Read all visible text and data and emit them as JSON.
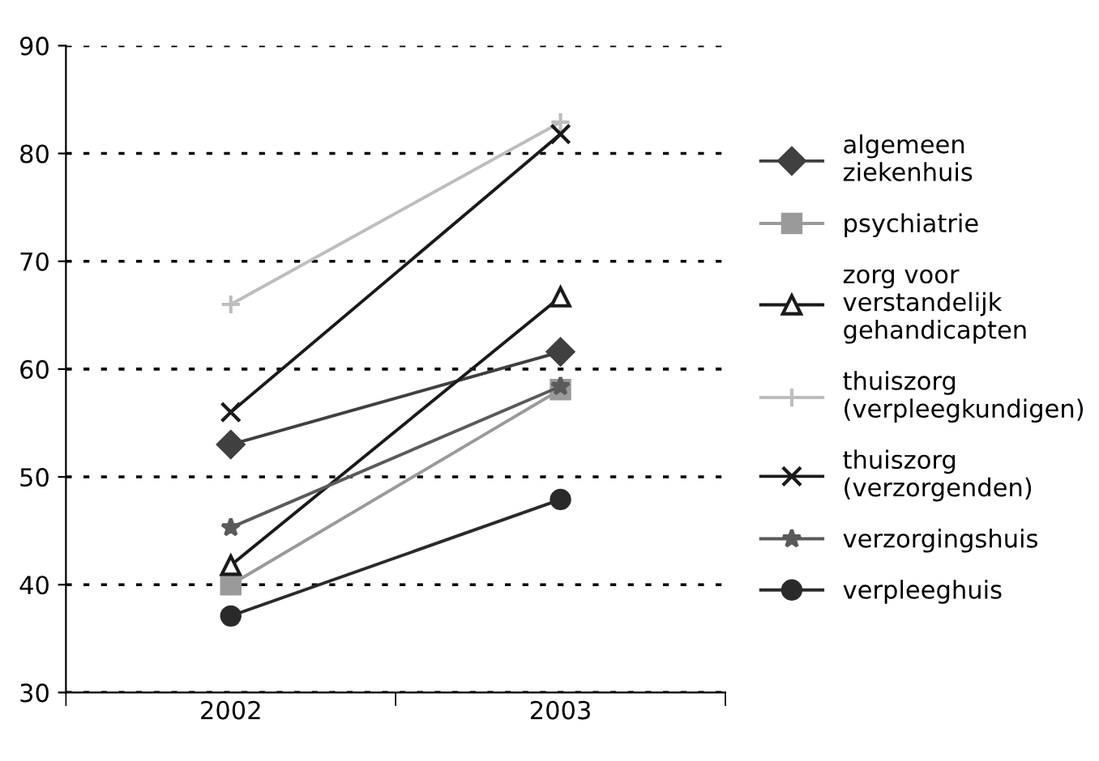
{
  "chart_data": {
    "type": "line",
    "categories": [
      "2002",
      "2003"
    ],
    "ylim": [
      30,
      90
    ],
    "yticks": [
      30,
      40,
      50,
      60,
      70,
      80,
      90
    ],
    "grid": "y",
    "legend": "right",
    "line_style": "solid",
    "series": [
      {
        "name": "algemeen\nziekenhuis",
        "color": "#404040",
        "marker": "diamond",
        "values": [
          53.0,
          61.6
        ]
      },
      {
        "name": "psychiatrie",
        "color": "#9a9a9a",
        "marker": "square",
        "values": [
          40.0,
          58.1
        ]
      },
      {
        "name": "zorg voor\nverstandelijk\ngehandicapten",
        "color": "#1a1a1a",
        "marker": "triangle",
        "values": [
          41.8,
          66.7
        ]
      },
      {
        "name": "thuiszorg\n(verpleegkundigen)",
        "color": "#bdbdbd",
        "marker": "plus",
        "values": [
          66.0,
          82.9
        ]
      },
      {
        "name": "thuiszorg\n(verzorgenden)",
        "color": "#1a1a1a",
        "marker": "cross",
        "values": [
          56.0,
          81.8
        ]
      },
      {
        "name": "verzorgingshuis",
        "color": "#5a5a5a",
        "marker": "star",
        "values": [
          45.3,
          58.4
        ]
      },
      {
        "name": "verpleeghuis",
        "color": "#2a2a2a",
        "marker": "circle",
        "values": [
          37.1,
          47.9
        ]
      }
    ]
  }
}
